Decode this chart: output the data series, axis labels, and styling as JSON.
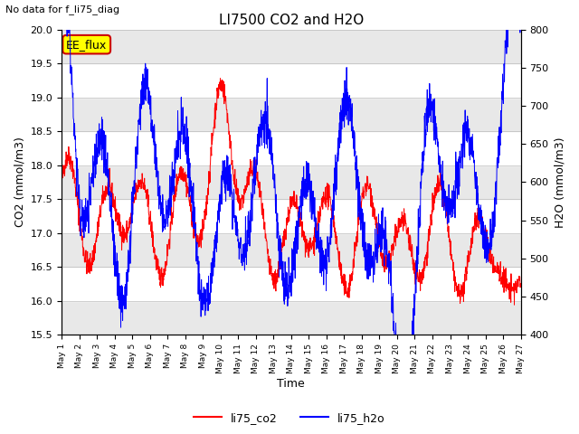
{
  "title": "LI7500 CO2 and H2O",
  "subtitle": "No data for f_li75_diag",
  "xlabel": "Time",
  "ylabel_left": "CO2 (mmol/m3)",
  "ylabel_right": "H2O (mmol/m3)",
  "ylim_left": [
    15.5,
    20.0
  ],
  "ylim_right": [
    400,
    800
  ],
  "yticks_left": [
    15.5,
    16.0,
    16.5,
    17.0,
    17.5,
    18.0,
    18.5,
    19.0,
    19.5,
    20.0
  ],
  "yticks_right": [
    400,
    450,
    500,
    550,
    600,
    650,
    700,
    750,
    800
  ],
  "legend_labels": [
    "li75_co2",
    "li75_h2o"
  ],
  "annotation_label": "EE_flux",
  "annotation_color": "#ffff00",
  "annotation_border_color": "#cc0000",
  "co2_color": "red",
  "h2o_color": "blue",
  "band_colors": [
    "#e8e8e8",
    "#ffffff"
  ],
  "n_days": 26,
  "figsize": [
    6.4,
    4.8
  ],
  "dpi": 100
}
